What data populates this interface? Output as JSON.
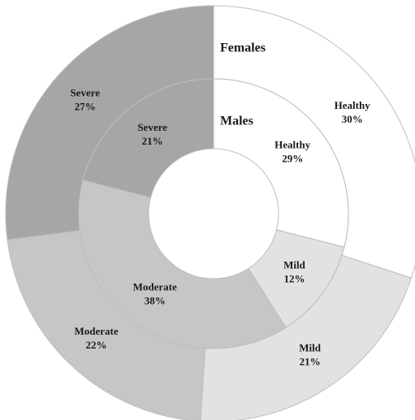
{
  "chart_data": {
    "type": "donut",
    "categories": [
      "Healthy",
      "Mild",
      "Moderate",
      "Severe"
    ],
    "colors": [
      "#ffffff",
      "#e2e2e2",
      "#c6c6c6",
      "#a6a6a6"
    ],
    "series": [
      {
        "name": "Females",
        "values": [
          30,
          21,
          22,
          27
        ],
        "value_labels": [
          "30%",
          "21%",
          "22%",
          "27%"
        ]
      },
      {
        "name": "Males",
        "values": [
          29,
          12,
          38,
          21
        ],
        "value_labels": [
          "29%",
          "12%",
          "38%",
          "21%"
        ]
      }
    ]
  }
}
